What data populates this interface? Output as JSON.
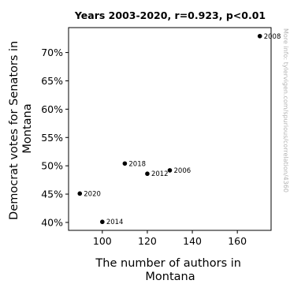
{
  "chart_data": {
    "type": "scatter",
    "title": "Years 2003-2020, r=0.923, p<0.01",
    "xlabel": [
      "The number of authors in",
      "Montana"
    ],
    "ylabel": [
      "Democrat votes for Senators in",
      "Montana"
    ],
    "xlim": [
      85,
      175
    ],
    "ylim": [
      38.6,
      74.4
    ],
    "xticks": [
      100,
      120,
      140,
      160
    ],
    "yticks": [
      40,
      45,
      50,
      55,
      60,
      65,
      70
    ],
    "ytick_suffix": "%",
    "grid": false,
    "marker_color": "#000000",
    "points": [
      {
        "x": 170,
        "y": 72.9,
        "label": "2008"
      },
      {
        "x": 110,
        "y": 50.4,
        "label": "2018"
      },
      {
        "x": 130,
        "y": 49.2,
        "label": "2006"
      },
      {
        "x": 120,
        "y": 48.6,
        "label": "2012"
      },
      {
        "x": 90,
        "y": 45.1,
        "label": "2020"
      },
      {
        "x": 100,
        "y": 40.1,
        "label": "2014"
      }
    ]
  },
  "watermark": "More info: tylervigen.com/spurious/correlation/4360"
}
